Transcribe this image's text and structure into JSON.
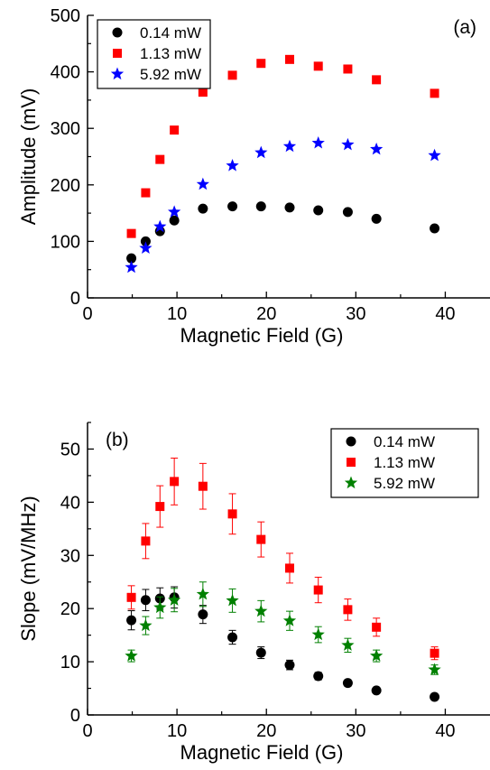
{
  "chart_data": [
    {
      "type": "scatter",
      "panel_label": "(a)",
      "xlabel": "Magnetic Field (G)",
      "ylabel": "Amplitude (mV)",
      "xlim": [
        0,
        45
      ],
      "ylim": [
        0,
        500
      ],
      "xticks": [
        0,
        10,
        20,
        30,
        40
      ],
      "yticks": [
        0,
        100,
        200,
        300,
        400,
        500
      ],
      "grid": false,
      "legend_position": "top-left",
      "series": [
        {
          "name": "0.14 mW",
          "marker": "circle",
          "color": "#000000",
          "x": [
            4.9,
            6.5,
            8.1,
            9.7,
            12.9,
            16.2,
            19.4,
            22.6,
            25.8,
            29.1,
            32.3,
            38.8
          ],
          "y": [
            70,
            100,
            118,
            137,
            158,
            162,
            162,
            160,
            155,
            152,
            140,
            123
          ]
        },
        {
          "name": "1.13 mW",
          "marker": "square",
          "color": "#ff0000",
          "x": [
            4.9,
            6.5,
            8.1,
            9.7,
            12.9,
            16.2,
            19.4,
            22.6,
            25.8,
            29.1,
            32.3,
            38.8
          ],
          "y": [
            114,
            186,
            245,
            297,
            364,
            394,
            415,
            422,
            410,
            405,
            386,
            362
          ]
        },
        {
          "name": "5.92 mW",
          "marker": "star",
          "color": "#0000ff",
          "x": [
            4.9,
            6.5,
            8.1,
            9.7,
            12.9,
            16.2,
            19.4,
            22.6,
            25.8,
            29.1,
            32.3,
            38.8
          ],
          "y": [
            54,
            88,
            126,
            152,
            201,
            234,
            257,
            268,
            274,
            271,
            263,
            252
          ]
        }
      ]
    },
    {
      "type": "scatter",
      "panel_label": "(b)",
      "xlabel": "Magnetic Field (G)",
      "ylabel": "Slope (mV/MHz)",
      "xlim": [
        0,
        45
      ],
      "ylim": [
        0,
        55
      ],
      "xticks": [
        0,
        10,
        20,
        30,
        40
      ],
      "yticks": [
        0,
        10,
        20,
        30,
        40,
        50
      ],
      "grid": false,
      "legend_position": "top-right",
      "series": [
        {
          "name": "0.14 mW",
          "marker": "circle",
          "color": "#000000",
          "x": [
            4.9,
            6.5,
            8.1,
            9.7,
            12.9,
            16.2,
            19.4,
            22.6,
            25.8,
            29.1,
            32.3,
            38.8
          ],
          "y": [
            17.8,
            21.6,
            21.9,
            22.1,
            18.9,
            14.6,
            11.7,
            9.4,
            7.3,
            6.0,
            4.6,
            3.4
          ],
          "err": [
            1.8,
            2.0,
            2.0,
            2.0,
            1.7,
            1.3,
            1.1,
            0.9,
            0.7,
            0.6,
            0.5,
            0.4
          ]
        },
        {
          "name": "1.13 mW",
          "marker": "square",
          "color": "#ff0000",
          "x": [
            4.9,
            6.5,
            8.1,
            9.7,
            12.9,
            16.2,
            19.4,
            22.6,
            25.8,
            29.1,
            32.3,
            38.8
          ],
          "y": [
            22.1,
            32.7,
            39.2,
            43.9,
            43.0,
            37.8,
            33.0,
            27.6,
            23.5,
            19.8,
            16.5,
            11.6
          ],
          "err": [
            2.2,
            3.3,
            3.9,
            4.4,
            4.3,
            3.8,
            3.3,
            2.8,
            2.4,
            2.0,
            1.7,
            1.2
          ]
        },
        {
          "name": "5.92 mW",
          "marker": "star",
          "color": "#008000",
          "x": [
            4.9,
            6.5,
            8.1,
            9.7,
            12.9,
            16.2,
            19.4,
            22.6,
            25.8,
            29.1,
            32.3,
            38.8
          ],
          "y": [
            11.1,
            16.8,
            20.2,
            21.6,
            22.7,
            21.5,
            19.5,
            17.7,
            15.1,
            13.1,
            11.1,
            8.5
          ],
          "err": [
            1.1,
            1.7,
            2.0,
            2.2,
            2.3,
            2.2,
            2.0,
            1.8,
            1.5,
            1.3,
            1.1,
            0.9
          ]
        }
      ]
    }
  ]
}
